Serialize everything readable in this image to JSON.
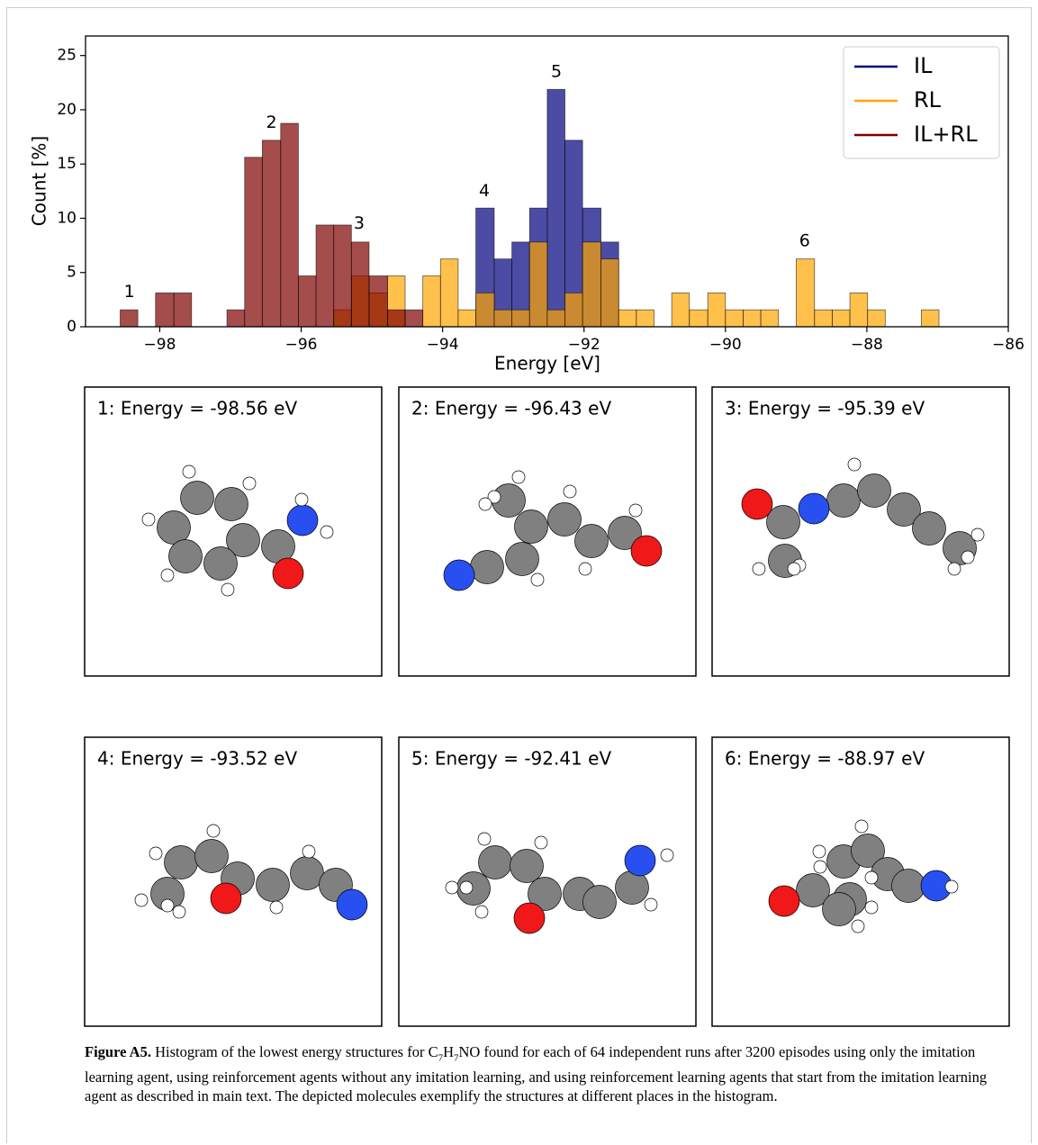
{
  "chart_data": {
    "type": "histogram",
    "xlabel": "Energy [eV]",
    "ylabel": "Count [%]",
    "bins": [
      -98.56,
      -98.31,
      -98.06,
      -97.8,
      -97.55,
      -97.3,
      -97.05,
      -96.8,
      -96.55,
      -96.29,
      -96.04,
      -95.79,
      -95.54,
      -95.29,
      -95.04,
      -94.78,
      -94.53,
      -94.28,
      -94.03,
      -93.78,
      -93.53,
      -93.27,
      -93.02,
      -92.77,
      -92.52,
      -92.27,
      -92.02,
      -91.76,
      -91.51,
      -91.26,
      -91.01,
      -90.76,
      -90.51,
      -90.25,
      -90.0,
      -89.75,
      -89.5,
      -89.25,
      -89.0,
      -88.74,
      -88.49,
      -88.24,
      -87.99,
      -87.74,
      -87.48,
      -87.23,
      -86.98
    ],
    "series": [
      {
        "name": "IL",
        "color": "#00007f",
        "values": [
          0,
          0,
          0,
          0,
          0,
          0,
          0,
          0,
          0,
          0,
          0,
          0,
          0,
          0,
          0,
          0,
          0,
          0,
          0,
          0,
          10.94,
          6.25,
          7.81,
          10.94,
          21.88,
          17.19,
          10.94,
          7.81,
          0,
          0,
          0,
          0,
          0,
          0,
          0,
          0,
          0,
          0,
          0,
          0,
          0,
          0,
          0,
          0,
          0,
          0
        ]
      },
      {
        "name": "RL",
        "color": "#ffa500",
        "values": [
          0,
          0,
          0,
          0,
          0,
          0,
          0,
          0,
          0,
          0,
          0,
          0,
          1.56,
          4.69,
          3.12,
          4.69,
          0,
          4.69,
          6.25,
          1.56,
          3.12,
          1.56,
          1.56,
          7.81,
          1.56,
          3.12,
          7.81,
          6.25,
          1.56,
          1.56,
          0,
          3.12,
          1.56,
          3.12,
          1.56,
          1.56,
          1.56,
          0,
          6.25,
          1.56,
          1.56,
          3.12,
          1.56,
          0,
          0,
          1.56
        ]
      },
      {
        "name": "IL+RL",
        "color": "#7f0000",
        "values": [
          1.56,
          0,
          3.12,
          3.12,
          0,
          0,
          1.56,
          15.62,
          17.19,
          18.75,
          4.69,
          9.38,
          9.38,
          7.81,
          4.69,
          1.56,
          1.56,
          0,
          0,
          0,
          0,
          0,
          0,
          0,
          0,
          0,
          0,
          0,
          0,
          0,
          0,
          0,
          0,
          0,
          0,
          0,
          0,
          0,
          0,
          0,
          0,
          0,
          0,
          0,
          0,
          0
        ]
      }
    ],
    "xlim": [
      -99.05,
      -86
    ],
    "ylim": [
      0,
      26.8
    ],
    "xticks": [
      {
        "value": -98,
        "label": "−98"
      },
      {
        "value": -96,
        "label": "−96"
      },
      {
        "value": -94,
        "label": "−94"
      },
      {
        "value": -92,
        "label": "−92"
      },
      {
        "value": -90,
        "label": "−90"
      },
      {
        "value": -88,
        "label": "−88"
      },
      {
        "value": -86,
        "label": "−86"
      }
    ],
    "yticks": [
      0,
      5,
      10,
      15,
      20,
      25
    ],
    "legend": "upper right",
    "annotations": [
      {
        "text": "1",
        "x": -98.43,
        "y": 3.2
      },
      {
        "text": "2",
        "x": -96.42,
        "y": 18.8
      },
      {
        "text": "3",
        "x": -95.18,
        "y": 9.5
      },
      {
        "text": "4",
        "x": -93.41,
        "y": 12.5
      },
      {
        "text": "5",
        "x": -92.39,
        "y": 23.5
      },
      {
        "text": "6",
        "x": -88.88,
        "y": 7.9
      }
    ]
  },
  "molecules": [
    {
      "title": "1: Energy = -98.56 eV"
    },
    {
      "title": "2: Energy = -96.43 eV"
    },
    {
      "title": "3: Energy = -95.39 eV"
    },
    {
      "title": "4: Energy = -93.52 eV"
    },
    {
      "title": "5: Energy = -92.41 eV"
    },
    {
      "title": "6: Energy = -88.97 eV"
    }
  ],
  "caption": {
    "label": "Figure A5.",
    "parts": [
      "Histogram of the lowest energy structures for C",
      "7",
      "H",
      "7",
      "NO found for each of 64 independent runs after 3200 episodes using only the imitation learning agent, using reinforcement agents without any imitation learning, and using reinforcement learning agents that start from the imitation learning agent as described in main text. The depicted molecules exemplify the structures at different places in the histogram."
    ]
  }
}
